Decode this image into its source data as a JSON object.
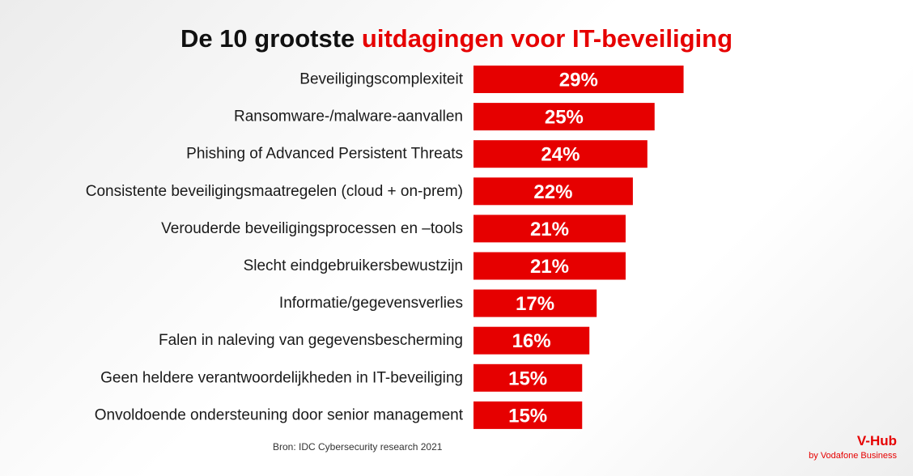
{
  "header": {
    "title_part1": "De 10 grootste ",
    "title_part2": "uitdagingen voor IT-beveiliging"
  },
  "chart_data": {
    "type": "bar",
    "orientation": "horizontal",
    "categories": [
      "Beveiligingscomplexiteit",
      "Ransomware-/malware-aanvallen",
      "Phishing of Advanced Persistent Threats",
      "Consistente beveiligingsmaatregelen (cloud + on-prem)",
      "Verouderde beveiligingsprocessen en –tools",
      "Slecht eindgebruikersbewustzijn",
      "Informatie/gegevensverlies",
      "Falen in naleving van gegevensbescherming",
      "Geen heldere verantwoordelijkheden in IT-beveiliging",
      "Onvoldoende ondersteuning door senior management"
    ],
    "values": [
      29,
      25,
      24,
      22,
      21,
      21,
      17,
      16,
      15,
      15
    ],
    "value_labels": [
      "29%",
      "25%",
      "24%",
      "22%",
      "21%",
      "21%",
      "17%",
      "16%",
      "15%",
      "15%"
    ],
    "bar_color": "#e60000",
    "grid": false
  },
  "footer": {
    "source": "Bron: IDC Cybersecurity research 2021",
    "brand_name": "V-Hub",
    "brand_sub": "by Vodafone Business"
  },
  "colors": {
    "accent": "#e60000"
  }
}
